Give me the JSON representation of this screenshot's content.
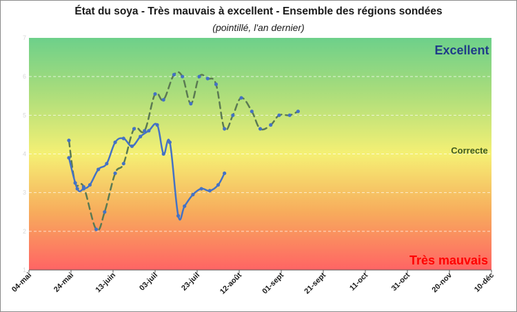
{
  "chart_data": {
    "type": "line",
    "title": "État du soya - Très mauvais à excellent - Ensemble des régions sondées",
    "subtitle": "(pointillé, l'an dernier)",
    "xlabel": "",
    "ylabel": "",
    "x_axis_type": "date",
    "x_ticks": [
      "04-mai",
      "24-mai",
      "13-juin",
      "03-juil",
      "23-juil",
      "12-août",
      "01-sept",
      "21-sept",
      "11-oct",
      "31-oct",
      "20-nov",
      "10-déc"
    ],
    "y_ticks": [
      "1",
      "2",
      "3",
      "4",
      "5",
      "6",
      "7"
    ],
    "ylim": [
      1,
      7
    ],
    "grid": "horizontal dashed",
    "zone_labels": {
      "excellent": "Excellent",
      "correcte": "Correcte",
      "tres_mauvais": "Très mauvais"
    },
    "colors": {
      "current_year": "#4472c4",
      "last_year": "#5b7a52",
      "markers": "#4472c4",
      "excellent_label": "#1f3c88",
      "correcte_label": "#3d5a1f",
      "tres_mauvais_label": "#ff0000",
      "background_top": "#6dd08a",
      "background_middle": "#f5f074",
      "background_bottom": "#ff6464"
    },
    "series": [
      {
        "style": "solid",
        "points": [
          [
            "05-23",
            3.9
          ],
          [
            "05-27",
            3.1
          ],
          [
            "05-30",
            3.1
          ],
          [
            "06-02",
            3.2
          ],
          [
            "06-06",
            3.6
          ],
          [
            "06-10",
            3.75
          ],
          [
            "06-14",
            4.3
          ],
          [
            "06-18",
            4.4
          ],
          [
            "06-22",
            4.2
          ],
          [
            "06-26",
            4.45
          ],
          [
            "06-30",
            4.6
          ],
          [
            "07-04",
            4.75
          ],
          [
            "07-07",
            4.0
          ],
          [
            "07-10",
            4.3
          ],
          [
            "07-14",
            2.4
          ],
          [
            "07-17",
            2.65
          ],
          [
            "07-21",
            2.95
          ],
          [
            "07-25",
            3.1
          ],
          [
            "07-29",
            3.05
          ],
          [
            "08-02",
            3.2
          ],
          [
            "08-05",
            3.5
          ]
        ]
      },
      {
        "style": "dashed",
        "points": [
          [
            "05-23",
            4.35
          ],
          [
            "05-26",
            3.25
          ],
          [
            "05-30",
            3.15
          ],
          [
            "06-05",
            2.05
          ],
          [
            "06-09",
            2.5
          ],
          [
            "06-14",
            3.5
          ],
          [
            "06-18",
            3.75
          ],
          [
            "06-23",
            4.65
          ],
          [
            "06-28",
            4.6
          ],
          [
            "07-03",
            5.55
          ],
          [
            "07-07",
            5.4
          ],
          [
            "07-12",
            6.05
          ],
          [
            "07-16",
            6.0
          ],
          [
            "07-20",
            5.3
          ],
          [
            "07-24",
            6.0
          ],
          [
            "07-28",
            5.95
          ],
          [
            "08-01",
            5.8
          ],
          [
            "08-05",
            4.65
          ],
          [
            "08-09",
            5.0
          ],
          [
            "08-13",
            5.45
          ],
          [
            "08-18",
            5.1
          ],
          [
            "08-22",
            4.65
          ],
          [
            "08-27",
            4.75
          ],
          [
            "08-31",
            5.0
          ],
          [
            "09-05",
            5.0
          ],
          [
            "09-09",
            5.1
          ]
        ]
      }
    ]
  }
}
